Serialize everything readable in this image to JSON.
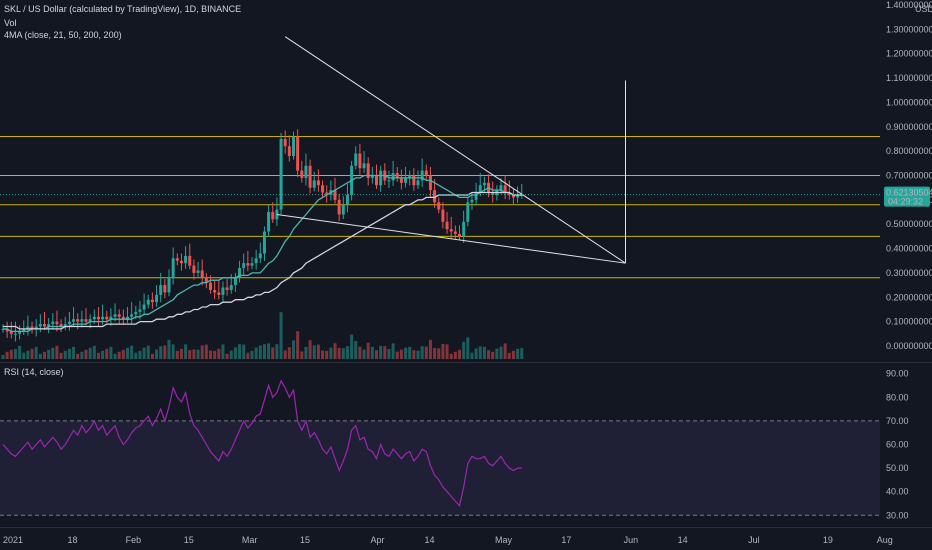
{
  "header": {
    "title": "SKL / US Dollar (calculated by TradingView), 1D, BINANCE",
    "vol_label": "Vol",
    "ma_label": "4MA (close, 21, 50, 200, 200)",
    "rsi_label": "RSI (14, close)"
  },
  "price_axis": {
    "currency": "USD",
    "ticks": [
      "1.40000000",
      "1.30000000",
      "1.20000000",
      "1.10000000",
      "1.00000000",
      "0.90000000",
      "0.80000000",
      "0.70000000",
      "0.60000000",
      "0.50000000",
      "0.40000000",
      "0.30000000",
      "0.20000000",
      "0.10000000",
      "0.00000000"
    ],
    "last_price": "0.62130504",
    "countdown": "04:29:32"
  },
  "rsi_axis": {
    "ticks": [
      "90.00",
      "80.00",
      "70.00",
      "60.00",
      "50.00",
      "40.00",
      "30.00"
    ]
  },
  "time_axis": {
    "ticks": [
      "2021",
      "18",
      "Feb",
      "15",
      "Mar",
      "15",
      "Apr",
      "14",
      "May",
      "17",
      "Jun",
      "14",
      "Jul",
      "19",
      "Aug"
    ]
  },
  "colors": {
    "background": "#131722",
    "up": "#26a69a",
    "down": "#ef5350",
    "ma_fast": "#4db6ac",
    "ma_slow": "#d1d4dc",
    "level_lines": "#c8b400",
    "rsi_line": "#9c27b0",
    "rsi_band": "#7e57c2",
    "price_tag": "#26a69a"
  },
  "chart_data": [
    {
      "type": "candlestick",
      "x": "daily 2021-01-01 .. 2021-05-06",
      "ylim": [
        0,
        1.4
      ],
      "series": [
        {
          "values_close": [
            0.07,
            0.06,
            0.05,
            0.05,
            0.06,
            0.07,
            0.08,
            0.07,
            0.08,
            0.09,
            0.08,
            0.09,
            0.1,
            0.09,
            0.08,
            0.09,
            0.1,
            0.11,
            0.1,
            0.11,
            0.1,
            0.11,
            0.12,
            0.11,
            0.12,
            0.11,
            0.12,
            0.13,
            0.12,
            0.11,
            0.12,
            0.13,
            0.14,
            0.15,
            0.17,
            0.19,
            0.18,
            0.21,
            0.25,
            0.22,
            0.28,
            0.36,
            0.35,
            0.34,
            0.37,
            0.33,
            0.3,
            0.31,
            0.28,
            0.26,
            0.23,
            0.22,
            0.21,
            0.24,
            0.23,
            0.25,
            0.28,
            0.32,
            0.34,
            0.33,
            0.34,
            0.36,
            0.38,
            0.47,
            0.55,
            0.52,
            0.56,
            0.85,
            0.82,
            0.78,
            0.86,
            0.72,
            0.69,
            0.74,
            0.65,
            0.68,
            0.66,
            0.63,
            0.62,
            0.64,
            0.6,
            0.54,
            0.58,
            0.62,
            0.74,
            0.79,
            0.73,
            0.75,
            0.69,
            0.7,
            0.66,
            0.72,
            0.68,
            0.68,
            0.71,
            0.69,
            0.67,
            0.69,
            0.7,
            0.66,
            0.68,
            0.72,
            0.7,
            0.64,
            0.59,
            0.56,
            0.51,
            0.48,
            0.47,
            0.46,
            0.45,
            0.51,
            0.59,
            0.6,
            0.63,
            0.66,
            0.67,
            0.63,
            0.62,
            0.64,
            0.66,
            0.63,
            0.62,
            0.61,
            0.62,
            0.62
          ]
        },
        {
          "name": "MA21",
          "values": [
            0.07,
            0.07,
            0.06,
            0.06,
            0.06,
            0.06,
            0.06,
            0.07,
            0.07,
            0.07,
            0.07,
            0.08,
            0.08,
            0.08,
            0.08,
            0.08,
            0.08,
            0.09,
            0.09,
            0.09,
            0.09,
            0.1,
            0.1,
            0.1,
            0.1,
            0.1,
            0.11,
            0.11,
            0.11,
            0.11,
            0.11,
            0.11,
            0.12,
            0.12,
            0.13,
            0.13,
            0.14,
            0.15,
            0.16,
            0.17,
            0.18,
            0.19,
            0.21,
            0.22,
            0.23,
            0.24,
            0.25,
            0.25,
            0.26,
            0.26,
            0.27,
            0.27,
            0.27,
            0.28,
            0.28,
            0.28,
            0.28,
            0.29,
            0.29,
            0.29,
            0.3,
            0.3,
            0.3,
            0.32,
            0.34,
            0.35,
            0.37,
            0.4,
            0.43,
            0.45,
            0.48,
            0.5,
            0.52,
            0.54,
            0.56,
            0.58,
            0.6,
            0.61,
            0.62,
            0.63,
            0.64,
            0.65,
            0.66,
            0.67,
            0.68,
            0.69,
            0.69,
            0.7,
            0.7,
            0.7,
            0.7,
            0.7,
            0.7,
            0.69,
            0.69,
            0.69,
            0.69,
            0.69,
            0.69,
            0.69,
            0.69,
            0.69,
            0.68,
            0.68,
            0.67,
            0.66,
            0.65,
            0.64,
            0.63,
            0.62,
            0.61,
            0.61,
            0.61,
            0.62,
            0.62,
            0.63,
            0.64,
            0.65,
            0.64,
            0.64,
            0.64,
            0.63,
            0.63,
            0.62,
            0.62,
            0.62
          ]
        },
        {
          "name": "MA50",
          "values": [
            0.08,
            0.08,
            0.08,
            0.08,
            0.07,
            0.07,
            0.07,
            0.07,
            0.07,
            0.07,
            0.07,
            0.07,
            0.07,
            0.07,
            0.07,
            0.08,
            0.08,
            0.08,
            0.08,
            0.08,
            0.08,
            0.08,
            0.08,
            0.08,
            0.08,
            0.09,
            0.09,
            0.09,
            0.09,
            0.09,
            0.09,
            0.09,
            0.09,
            0.1,
            0.1,
            0.1,
            0.1,
            0.11,
            0.11,
            0.11,
            0.12,
            0.12,
            0.13,
            0.13,
            0.14,
            0.14,
            0.15,
            0.15,
            0.16,
            0.16,
            0.17,
            0.17,
            0.17,
            0.18,
            0.18,
            0.18,
            0.19,
            0.19,
            0.19,
            0.2,
            0.2,
            0.21,
            0.21,
            0.22,
            0.22,
            0.23,
            0.24,
            0.26,
            0.27,
            0.28,
            0.3,
            0.31,
            0.32,
            0.34,
            0.35,
            0.36,
            0.37,
            0.38,
            0.39,
            0.4,
            0.41,
            0.42,
            0.43,
            0.44,
            0.45,
            0.46,
            0.47,
            0.48,
            0.49,
            0.5,
            0.51,
            0.52,
            0.53,
            0.54,
            0.55,
            0.56,
            0.57,
            0.58,
            0.58,
            0.59,
            0.6,
            0.6,
            0.61,
            0.61,
            0.61,
            0.62,
            0.62,
            0.62,
            0.62,
            0.62,
            0.62,
            0.62,
            0.62,
            0.63,
            0.63,
            0.63,
            0.63,
            0.63,
            0.63,
            0.63,
            0.63,
            0.63,
            0.63,
            0.62,
            0.62,
            0.62
          ]
        }
      ],
      "horizontal_levels": [
        0.86,
        0.7,
        0.58,
        0.45,
        0.28
      ],
      "trendlines": [
        {
          "from": [
            "2021-03-10",
            1.27
          ],
          "to": [
            "2021-05-31",
            0.34
          ]
        },
        {
          "from": [
            "2021-03-08",
            0.54
          ],
          "to": [
            "2021-05-31",
            0.34
          ]
        }
      ],
      "vertical_marker": {
        "date": "2021-05-31",
        "from": 0.34,
        "to": 1.09
      }
    },
    {
      "type": "line",
      "x": "daily 2021-01-01 .. 2021-05-06",
      "ylim": [
        28,
        92
      ],
      "bands": [
        30,
        70
      ],
      "series": [
        {
          "values": [
            60,
            58,
            56,
            55,
            57,
            59,
            61,
            58,
            60,
            62,
            59,
            61,
            63,
            61,
            58,
            60,
            63,
            66,
            64,
            68,
            65,
            67,
            70,
            66,
            68,
            64,
            66,
            68,
            63,
            60,
            62,
            65,
            67,
            68,
            70,
            72,
            68,
            71,
            75,
            70,
            76,
            84,
            80,
            78,
            82,
            73,
            68,
            66,
            63,
            60,
            57,
            55,
            53,
            57,
            55,
            58,
            62,
            66,
            70,
            67,
            69,
            72,
            73,
            79,
            85,
            80,
            82,
            87,
            84,
            80,
            83,
            70,
            66,
            70,
            63,
            65,
            62,
            58,
            56,
            59,
            54,
            49,
            53,
            58,
            66,
            68,
            62,
            63,
            58,
            57,
            54,
            60,
            56,
            55,
            58,
            56,
            54,
            56,
            57,
            53,
            55,
            58,
            57,
            51,
            47,
            45,
            42,
            40,
            38,
            36,
            34,
            42,
            52,
            55,
            54,
            54,
            55,
            52,
            51,
            53,
            55,
            52,
            50,
            49,
            50,
            50
          ]
        }
      ]
    }
  ]
}
